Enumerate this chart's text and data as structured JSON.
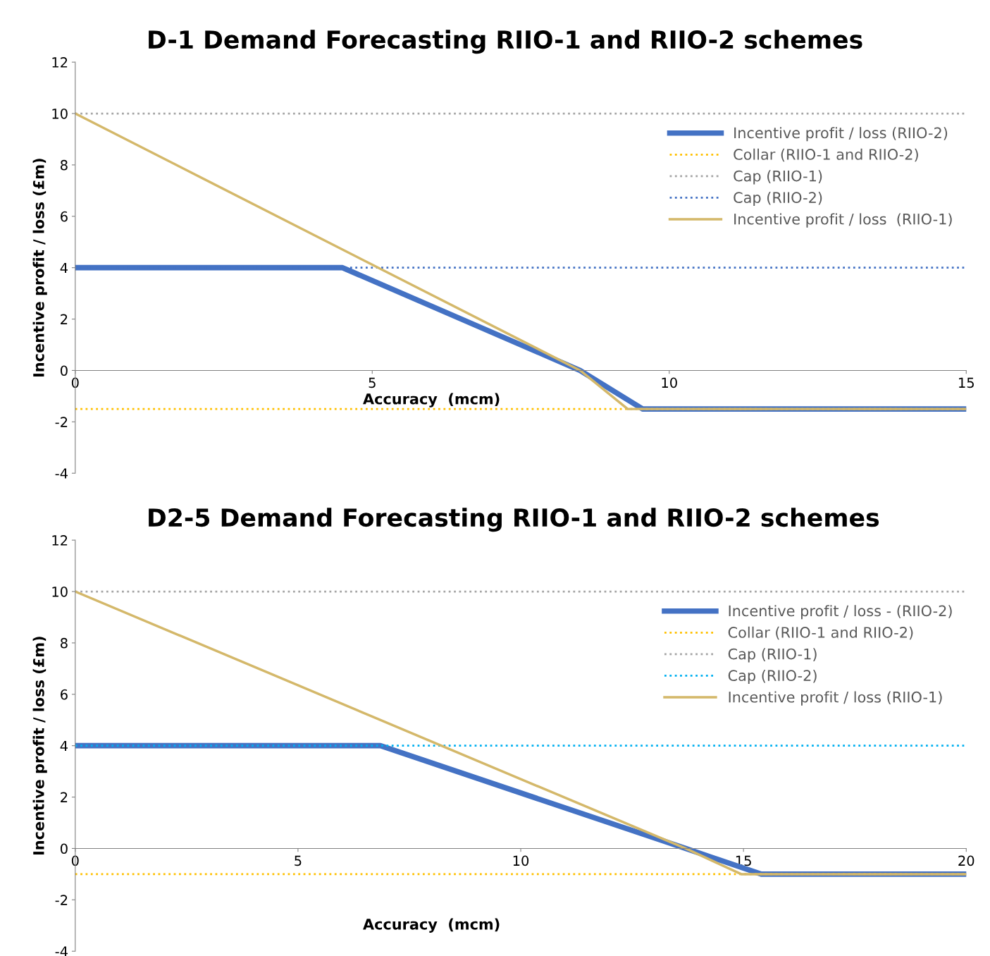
{
  "chart_data": [
    {
      "type": "line",
      "title": "D-1 Demand Forecasting RIIO-1 and RIIO-2 schemes",
      "xlabel": "Accuracy  (mcm)",
      "ylabel": "Incentive profit / loss (£m)",
      "xlim": [
        0,
        15
      ],
      "xticks": [
        0,
        5,
        10,
        15
      ],
      "ylim": [
        -4,
        12
      ],
      "yticks": [
        -4,
        -2,
        0,
        2,
        4,
        6,
        8,
        10,
        12
      ],
      "legend": "right",
      "grid": false,
      "series": [
        {
          "name": "Incentive profit / loss (RIIO-2)",
          "color": "#4472c4",
          "line_style": "solid",
          "x": [
            0,
            4.5,
            8.5,
            9.55,
            15
          ],
          "values": [
            4,
            4,
            0,
            -1.5,
            -1.5
          ]
        },
        {
          "name": "Collar (RIIO-1 and RIIO-2)",
          "color": "#ffc000",
          "line_style": "dotted",
          "x": [
            0,
            15
          ],
          "values": [
            -1.5,
            -1.5
          ]
        },
        {
          "name": "Cap (RIIO-1)",
          "color": "#a5a5a5",
          "line_style": "dotted",
          "x": [
            0,
            15
          ],
          "values": [
            10,
            10
          ]
        },
        {
          "name": "Cap (RIIO-2)",
          "color": "#4472c4",
          "line_style": "dotted",
          "x": [
            0,
            15
          ],
          "values": [
            4,
            4
          ]
        },
        {
          "name": "Incentive profit / loss  (RIIO-1)",
          "color": "#d4b86a",
          "line_style": "solid",
          "x": [
            0,
            8.5,
            9.3,
            15
          ],
          "values": [
            10,
            0,
            -1.5,
            -1.5
          ]
        }
      ]
    },
    {
      "type": "line",
      "title": "D2-5 Demand Forecasting RIIO-1 and RIIO-2 schemes",
      "xlabel": "Accuracy  (mcm)",
      "ylabel": "Incentive profit / loss (£m)",
      "xlim": [
        0,
        20
      ],
      "xticks": [
        0,
        5,
        10,
        15,
        20
      ],
      "ylim": [
        -4,
        12
      ],
      "yticks": [
        -4,
        -2,
        0,
        2,
        4,
        6,
        8,
        10,
        12
      ],
      "legend": "right",
      "grid": false,
      "series": [
        {
          "name": "Incentive profit / loss - (RIIO-2)",
          "color": "#4472c4",
          "line_style": "solid",
          "x": [
            0,
            6.85,
            13.7,
            15.4,
            20
          ],
          "values": [
            4,
            4,
            0,
            -1,
            -1
          ]
        },
        {
          "name": "Collar (RIIO-1 and RIIO-2)",
          "color": "#ffc000",
          "line_style": "dotted",
          "x": [
            0,
            20
          ],
          "values": [
            -1,
            -1
          ]
        },
        {
          "name": "Cap (RIIO-1)",
          "color": "#a5a5a5",
          "line_style": "dotted",
          "x": [
            0,
            20
          ],
          "values": [
            10,
            10
          ]
        },
        {
          "name": "Cap (RIIO-2)",
          "color": "#00b0f0",
          "line_style": "dotted",
          "x": [
            0,
            20
          ],
          "values": [
            4,
            4
          ]
        },
        {
          "name": "Incentive profit / loss (RIIO-1)",
          "color": "#d4b86a",
          "line_style": "solid",
          "x": [
            0,
            13.7,
            14.95,
            20
          ],
          "values": [
            10,
            0,
            -1,
            -1
          ]
        }
      ]
    }
  ]
}
